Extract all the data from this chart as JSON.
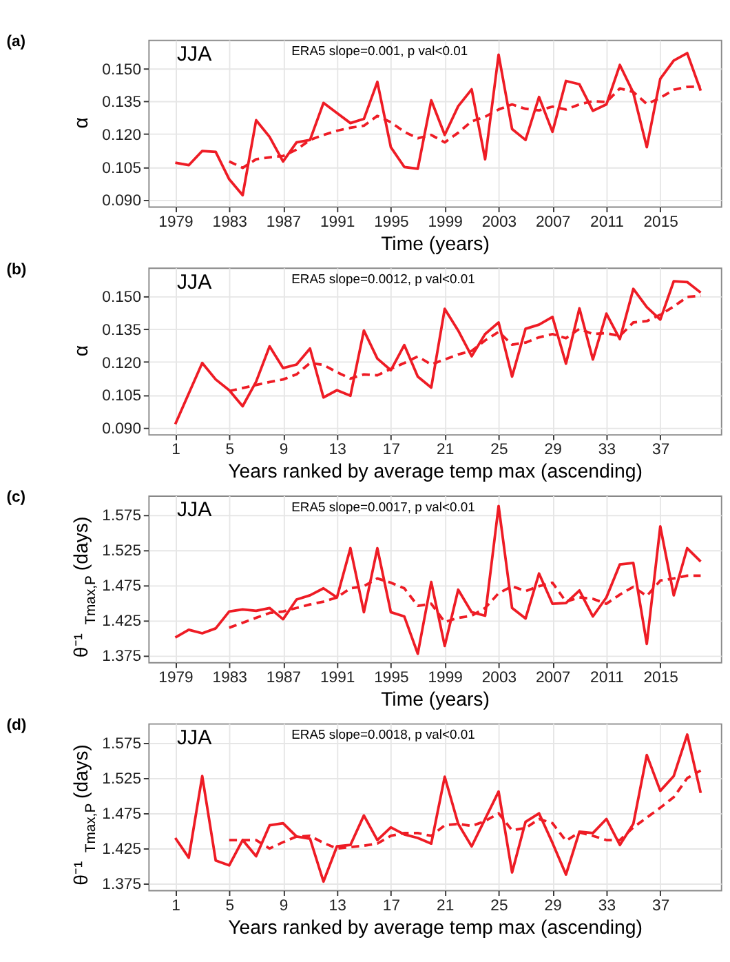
{
  "chart_data": [
    {
      "type": "line",
      "title": "(a)",
      "xlabel": "Time (years)",
      "ylabel": "α",
      "grid": true,
      "annotations": [
        "JJA",
        "ERA5 slope=0.001, p val<0.01"
      ],
      "x": [
        1979,
        1980,
        1981,
        1982,
        1983,
        1984,
        1985,
        1986,
        1987,
        1988,
        1989,
        1990,
        1991,
        1992,
        1993,
        1994,
        1995,
        1996,
        1997,
        1998,
        1999,
        2000,
        2001,
        2002,
        2003,
        2004,
        2005,
        2006,
        2007,
        2008,
        2009,
        2010,
        2011,
        2012,
        2013,
        2014,
        2015,
        2016,
        2017,
        2018
      ],
      "xlim": [
        1977,
        2019.5
      ],
      "xticks": [
        1979,
        1983,
        1987,
        1991,
        1995,
        1999,
        2003,
        2007,
        2011,
        2015
      ],
      "ylim": [
        0.087,
        0.163
      ],
      "yticks": [
        {
          "value": 0.09,
          "label": "0.090"
        },
        {
          "value": 0.105,
          "label": "0.105"
        },
        {
          "value": 0.12,
          "label": "0.120"
        },
        {
          "value": 0.135,
          "label": "0.135"
        },
        {
          "value": 0.15,
          "label": "0.150"
        }
      ],
      "series": [
        {
          "color": "#ee1c25",
          "line_style": "solid",
          "values": [
            0.1069,
            0.1058,
            0.1123,
            0.1119,
            0.0994,
            0.0921,
            0.1263,
            0.1187,
            0.1075,
            0.1162,
            0.1173,
            0.1342,
            0.1296,
            0.125,
            0.1269,
            0.1438,
            0.114,
            0.105,
            0.1042,
            0.1354,
            0.1196,
            0.1327,
            0.1404,
            0.1085,
            0.1562,
            0.1223,
            0.1173,
            0.1369,
            0.121,
            0.1442,
            0.1427,
            0.1306,
            0.1335,
            0.1515,
            0.1388,
            0.114,
            0.1452,
            0.1535,
            0.1569,
            0.1398
          ]
        },
        {
          "color": "#ee1c25",
          "line_style": "dashed",
          "values": [
            null,
            null,
            null,
            null,
            0.1075,
            0.1046,
            0.1085,
            0.1094,
            0.11,
            0.1129,
            0.1173,
            0.1196,
            0.1215,
            0.1229,
            0.1238,
            0.1283,
            0.1254,
            0.121,
            0.1181,
            0.1196,
            0.1162,
            0.1206,
            0.1258,
            0.1279,
            0.1312,
            0.1335,
            0.1315,
            0.1308,
            0.1325,
            0.1312,
            0.1335,
            0.135,
            0.1346,
            0.1408,
            0.1392,
            0.1337,
            0.1365,
            0.1402,
            0.1415,
            0.1417
          ]
        }
      ]
    },
    {
      "type": "line",
      "title": "(b)",
      "xlabel": "Years ranked by average temp max (ascending)",
      "ylabel": "α",
      "grid": true,
      "annotations": [
        "JJA",
        "ERA5 slope=0.0012, p val<0.01"
      ],
      "x": [
        1,
        2,
        3,
        4,
        5,
        6,
        7,
        8,
        9,
        10,
        11,
        12,
        13,
        14,
        15,
        16,
        17,
        18,
        19,
        20,
        21,
        22,
        23,
        24,
        25,
        26,
        27,
        28,
        29,
        30,
        31,
        32,
        33,
        34,
        35,
        36,
        37,
        38,
        39,
        40
      ],
      "xlim": [
        -1,
        41.5
      ],
      "xticks": [
        1,
        5,
        9,
        13,
        17,
        21,
        25,
        29,
        33,
        37
      ],
      "ylim": [
        0.087,
        0.163
      ],
      "yticks": [
        {
          "value": 0.09,
          "label": "0.090"
        },
        {
          "value": 0.105,
          "label": "0.105"
        },
        {
          "value": 0.12,
          "label": "0.120"
        },
        {
          "value": 0.135,
          "label": "0.135"
        },
        {
          "value": 0.15,
          "label": "0.150"
        }
      ],
      "series": [
        {
          "color": "#ee1c25",
          "line_style": "solid",
          "values": [
            0.0916,
            0.1056,
            0.1195,
            0.112,
            0.1071,
            0.0998,
            0.111,
            0.1271,
            0.1172,
            0.1188,
            0.1261,
            0.1038,
            0.1071,
            0.1046,
            0.1343,
            0.1215,
            0.1162,
            0.1277,
            0.1133,
            0.1083,
            0.1442,
            0.1343,
            0.1226,
            0.1327,
            0.138,
            0.1133,
            0.1351,
            0.137,
            0.1405,
            0.1192,
            0.1444,
            0.1211,
            0.142,
            0.1304,
            0.1533,
            0.145,
            0.1393,
            0.1568,
            0.1564,
            0.1516
          ]
        },
        {
          "color": "#ee1c25",
          "line_style": "dashed",
          "values": [
            null,
            null,
            null,
            null,
            0.1067,
            0.1081,
            0.1095,
            0.1108,
            0.112,
            0.1143,
            0.1195,
            0.1186,
            0.1153,
            0.1124,
            0.1143,
            0.1139,
            0.1168,
            0.1195,
            0.1225,
            0.1188,
            0.1211,
            0.1234,
            0.125,
            0.1298,
            0.1337,
            0.1279,
            0.1288,
            0.1312,
            0.1327,
            0.1308,
            0.1351,
            0.1327,
            0.1331,
            0.1318,
            0.138,
            0.1386,
            0.1415,
            0.1453,
            0.1496,
            0.1502
          ]
        }
      ]
    },
    {
      "type": "line",
      "title": "(c)",
      "xlabel": "Time (years)",
      "ylabel": "θ⁻¹$_{Tmax,P}$ (days)",
      "grid": true,
      "annotations": [
        "JJA",
        "ERA5 slope=0.0017, p val<0.01"
      ],
      "x": [
        1979,
        1980,
        1981,
        1982,
        1983,
        1984,
        1985,
        1986,
        1987,
        1988,
        1989,
        1990,
        1991,
        1992,
        1993,
        1994,
        1995,
        1996,
        1997,
        1998,
        1999,
        2000,
        2001,
        2002,
        2003,
        2004,
        2005,
        2006,
        2007,
        2008,
        2009,
        2010,
        2011,
        2012,
        2013,
        2014,
        2015,
        2016,
        2017,
        2018
      ],
      "xlim": [
        1977,
        2019.5
      ],
      "xticks": [
        1979,
        1983,
        1987,
        1991,
        1995,
        1999,
        2003,
        2007,
        2011,
        2015
      ],
      "ylim": [
        1.365,
        1.602
      ],
      "yticks": [
        1.375,
        1.425,
        1.475,
        1.525,
        1.575
      ],
      "series": [
        {
          "color": "#ee1c25",
          "line_style": "solid",
          "values": [
            1.4,
            1.411,
            1.406,
            1.413,
            1.437,
            1.44,
            1.438,
            1.442,
            1.426,
            1.454,
            1.46,
            1.47,
            1.457,
            1.527,
            1.436,
            1.527,
            1.436,
            1.43,
            1.377,
            1.479,
            1.388,
            1.468,
            1.436,
            1.431,
            1.587,
            1.442,
            1.427,
            1.491,
            1.448,
            1.449,
            1.467,
            1.43,
            1.457,
            1.504,
            1.506,
            1.391,
            1.558,
            1.46,
            1.527,
            1.508
          ]
        },
        {
          "color": "#ee1c25",
          "line_style": "dashed",
          "values": [
            null,
            null,
            null,
            null,
            1.414,
            1.421,
            1.428,
            1.435,
            1.437,
            1.442,
            1.447,
            1.451,
            1.457,
            1.47,
            1.473,
            1.484,
            1.478,
            1.47,
            1.445,
            1.448,
            1.422,
            1.428,
            1.431,
            1.442,
            1.463,
            1.473,
            1.466,
            1.473,
            1.478,
            1.451,
            1.457,
            1.455,
            1.448,
            1.461,
            1.472,
            1.459,
            1.481,
            1.484,
            1.488,
            1.488
          ]
        }
      ]
    },
    {
      "type": "line",
      "title": "(d)",
      "xlabel": "Years ranked by average temp max (ascending)",
      "ylabel": "θ⁻¹$_{Tmax,P}$ (days)",
      "grid": true,
      "annotations": [
        "JJA",
        "ERA5 slope=0.0018, p val<0.01"
      ],
      "x": [
        1,
        2,
        3,
        4,
        5,
        6,
        7,
        8,
        9,
        10,
        11,
        12,
        13,
        14,
        15,
        16,
        17,
        18,
        19,
        20,
        21,
        22,
        23,
        24,
        25,
        26,
        27,
        28,
        29,
        30,
        31,
        32,
        33,
        34,
        35,
        36,
        37,
        38,
        39,
        40
      ],
      "xlim": [
        -1,
        41.5
      ],
      "xticks": [
        1,
        5,
        9,
        13,
        17,
        21,
        25,
        29,
        33,
        37
      ],
      "ylim": [
        1.365,
        1.602
      ],
      "yticks": [
        1.375,
        1.425,
        1.475,
        1.525,
        1.575
      ],
      "series": [
        {
          "color": "#ee1c25",
          "line_style": "solid",
          "values": [
            1.439,
            1.411,
            1.527,
            1.407,
            1.4,
            1.436,
            1.413,
            1.457,
            1.46,
            1.441,
            1.438,
            1.377,
            1.427,
            1.429,
            1.471,
            1.436,
            1.454,
            1.444,
            1.439,
            1.431,
            1.526,
            1.459,
            1.427,
            1.466,
            1.505,
            1.39,
            1.462,
            1.474,
            1.432,
            1.387,
            1.448,
            1.446,
            1.466,
            1.429,
            1.459,
            1.557,
            1.506,
            1.527,
            1.586,
            1.503
          ]
        },
        {
          "color": "#ee1c25",
          "line_style": "dashed",
          "values": [
            null,
            null,
            null,
            null,
            1.436,
            1.436,
            1.436,
            1.424,
            1.433,
            1.441,
            1.442,
            1.432,
            1.424,
            1.426,
            1.428,
            1.431,
            1.442,
            1.446,
            1.446,
            1.442,
            1.457,
            1.459,
            1.456,
            1.463,
            1.474,
            1.45,
            1.453,
            1.466,
            1.46,
            1.435,
            1.447,
            1.442,
            1.436,
            1.436,
            1.454,
            1.468,
            1.482,
            1.497,
            1.524,
            1.535
          ]
        }
      ]
    }
  ]
}
